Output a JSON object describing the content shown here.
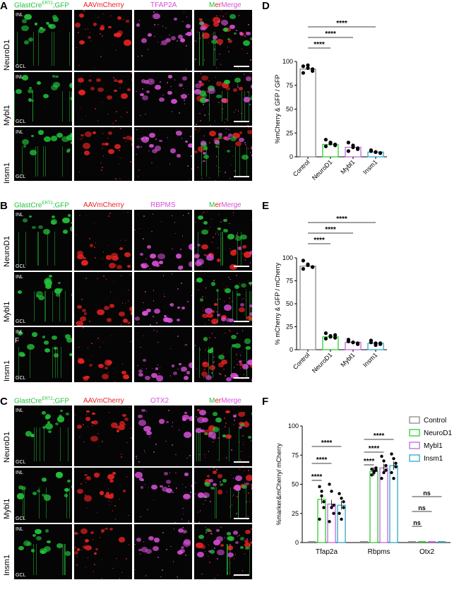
{
  "colors": {
    "green": "#22c43a",
    "red": "#ee2222",
    "magenta": "#d94fd9",
    "white": "#ffffff",
    "grey": "#8a8a8a",
    "neuro": "#33cc33",
    "mybl": "#c266e0",
    "insm": "#30a8c8"
  },
  "panels": {
    "A": {
      "letter": "A",
      "headers": [
        "GlastCre",
        "ERT2",
        "GFP",
        "AAVmCherry",
        "TFAP2A",
        "Merge"
      ],
      "rows": [
        "NeuroD1",
        "Mybl1",
        "Insm1"
      ],
      "inl": "INL",
      "gcl": "GCL"
    },
    "B": {
      "letter": "B",
      "headers": [
        "GlastCre",
        "ERT2",
        "GFP",
        "AAVmCherry",
        "RBPMS",
        "Merge"
      ],
      "rows": [
        "NeuroD1",
        "Mybl1",
        "Insm1"
      ],
      "inl": "INL",
      "gcl": "GCL",
      "extra": "F"
    },
    "C": {
      "letter": "C",
      "headers": [
        "GlastCre",
        "ERT2",
        "GFP",
        "AAVmCherry",
        "OTX2",
        "Merge"
      ],
      "rows": [
        "NeuroD1",
        "Mybl1",
        "Insm1"
      ],
      "inl": "INL",
      "gcl": "GCL"
    }
  },
  "chart_data": [
    {
      "panel": "D",
      "type": "bar",
      "categories": [
        "Control",
        "NeuroD1",
        "Mybl1",
        "Insm1"
      ],
      "values": [
        92,
        13,
        10,
        5
      ],
      "points": [
        [
          95,
          93,
          90,
          88,
          96,
          92
        ],
        [
          18,
          14,
          12,
          11,
          15,
          13
        ],
        [
          15,
          12,
          8,
          6,
          10,
          9
        ],
        [
          7,
          5,
          4,
          6,
          5,
          4
        ]
      ],
      "ylabel": "%mCherry & GFP / GFP",
      "ylim": [
        0,
        100
      ],
      "yticks": [
        0,
        25,
        50,
        75,
        100
      ],
      "sig": [
        "****",
        "****",
        "****"
      ],
      "colors": [
        "#8a8a8a",
        "#33cc33",
        "#c266e0",
        "#30a8c8"
      ]
    },
    {
      "panel": "E",
      "type": "bar",
      "categories": [
        "Control",
        "NeuroD1",
        "Mybl1",
        "Insm1"
      ],
      "values": [
        91,
        14,
        8,
        7
      ],
      "points": [
        [
          97,
          93,
          90,
          88,
          92,
          90
        ],
        [
          18,
          15,
          13,
          12,
          14,
          16
        ],
        [
          11,
          8,
          7,
          9,
          8,
          6
        ],
        [
          10,
          7,
          6,
          8,
          5,
          7
        ]
      ],
      "ylabel": "% mCherry & GFP / mCherry",
      "ylim": [
        0,
        100
      ],
      "yticks": [
        0,
        25,
        50,
        75,
        100
      ],
      "sig": [
        "****",
        "****",
        "****"
      ],
      "colors": [
        "#8a8a8a",
        "#33cc33",
        "#c266e0",
        "#30a8c8"
      ]
    },
    {
      "panel": "F",
      "type": "bar",
      "groups": [
        "Tfap2a",
        "Rbpms",
        "Otx2"
      ],
      "series": [
        {
          "name": "Control",
          "values": [
            0,
            0,
            0
          ]
        },
        {
          "name": "NeuroD1",
          "values": [
            37,
            61,
            0
          ]
        },
        {
          "name": "Mybl1",
          "values": [
            33,
            64,
            0
          ]
        },
        {
          "name": "Insm1",
          "values": [
            32,
            66,
            0
          ]
        }
      ],
      "points": [
        [
          [
            0
          ],
          [
            0
          ],
          [
            0
          ]
        ],
        [
          [
            48,
            44,
            30,
            20,
            40,
            35
          ],
          [
            63,
            60,
            62,
            58,
            61,
            64
          ],
          [
            0
          ]
        ],
        [
          [
            50,
            44,
            32,
            18,
            30,
            25
          ],
          [
            74,
            70,
            62,
            55,
            60,
            66
          ],
          [
            0
          ]
        ],
        [
          [
            42,
            38,
            35,
            25,
            20,
            30
          ],
          [
            76,
            72,
            68,
            60,
            55,
            65
          ],
          [
            0
          ]
        ]
      ],
      "ylabel": "%marker&mCherry/ mCherry",
      "ylim": [
        0,
        100
      ],
      "yticks": [
        0,
        25,
        50,
        75,
        100
      ],
      "sig_tfap2a": [
        "****",
        "****",
        "****"
      ],
      "sig_rbpms": [
        "****",
        "****",
        "****"
      ],
      "sig_otx2": [
        "ns",
        "ns",
        "ns"
      ],
      "colors": [
        "#8a8a8a",
        "#33cc33",
        "#c266e0",
        "#30a8c8"
      ]
    }
  ]
}
